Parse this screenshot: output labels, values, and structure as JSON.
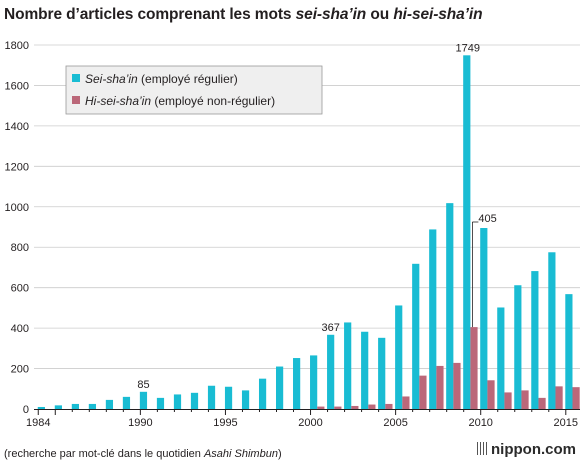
{
  "title": {
    "prefix": "Nombre d’articles comprenant les mots ",
    "term1": "sei-sha’in",
    "middle": " ou ",
    "term2": "hi-sei-sha’in"
  },
  "footnote": {
    "before": "(recherche par mot-clé dans le quotidien ",
    "source": "Asahi Shimbun",
    "after": ")"
  },
  "brand": {
    "name": "nippon.com",
    "icon": "nippon-logo-icon"
  },
  "colors": {
    "regular": "#19bcd3",
    "nonregular": "#bb6779",
    "axis": "#231f20",
    "grid": "#cccccc",
    "legend_bg": "#efefef"
  },
  "chart_data": {
    "type": "bar",
    "years": [
      1984,
      1985,
      1986,
      1987,
      1988,
      1989,
      1990,
      1991,
      1992,
      1993,
      1994,
      1995,
      1996,
      1997,
      1998,
      1999,
      2000,
      2001,
      2002,
      2003,
      2004,
      2005,
      2006,
      2007,
      2008,
      2009,
      2010,
      2011,
      2012,
      2013,
      2014,
      2015
    ],
    "series": [
      {
        "name": "Sei-sha’in",
        "name_suffix": " (employé régulier)",
        "values": [
          10,
          18,
          25,
          25,
          45,
          60,
          85,
          55,
          72,
          80,
          115,
          110,
          92,
          150,
          210,
          252,
          265,
          367,
          428,
          382,
          352,
          512,
          718,
          888,
          1018,
          1749,
          895,
          502,
          612,
          682,
          775,
          568
        ]
      },
      {
        "name": "Hi-sei-sha’in",
        "name_suffix": " (employé non-régulier)",
        "values": [
          0,
          0,
          0,
          0,
          0,
          0,
          0,
          0,
          0,
          0,
          0,
          0,
          0,
          0,
          0,
          0,
          12,
          12,
          15,
          22,
          25,
          62,
          165,
          213,
          228,
          405,
          142,
          82,
          92,
          55,
          112,
          108
        ]
      }
    ],
    "ylim": [
      0,
      1800
    ],
    "yticks": [
      "0",
      "200",
      "400",
      "600",
      "800",
      "1000",
      "1200",
      "1400",
      "1600",
      "1800"
    ],
    "xticks": [
      "1984",
      "1990",
      "1995",
      "2000",
      "2005",
      "2010",
      "2015"
    ],
    "grid": true,
    "legend_position": "top-left",
    "annotations": [
      {
        "year": 1990,
        "series": 0,
        "text": "85"
      },
      {
        "year": 2001,
        "series": 0,
        "text": "367"
      },
      {
        "year": 2009,
        "series": 0,
        "text": "1749"
      },
      {
        "year": 2009,
        "series": 1,
        "text": "405"
      }
    ]
  }
}
